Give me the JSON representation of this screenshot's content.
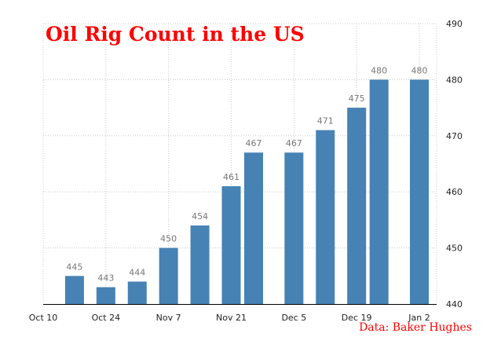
{
  "chart_data": {
    "type": "bar",
    "title": "Oil Rig Count in the US",
    "source": "Data: Baker Hughes",
    "x": [
      "2014-10-17",
      "2014-10-24",
      "2014-10-31",
      "2014-11-07",
      "2014-11-14",
      "2014-11-21",
      "2014-11-26",
      "2014-12-05",
      "2014-12-12",
      "2014-12-19",
      "2014-12-24",
      "2015-01-02"
    ],
    "values": [
      445,
      443,
      444,
      450,
      454,
      461,
      467,
      467,
      471,
      475,
      480,
      480
    ],
    "data_labels": [
      "445",
      "443",
      "444",
      "450",
      "454",
      "461",
      "467",
      "467",
      "471",
      "475",
      "480",
      "480"
    ],
    "x_ticks": [
      {
        "date": "2014-10-10",
        "label": "Oct 10"
      },
      {
        "date": "2014-10-24",
        "label": "Oct 24"
      },
      {
        "date": "2014-11-07",
        "label": "Nov 7"
      },
      {
        "date": "2014-11-21",
        "label": "Nov 21"
      },
      {
        "date": "2014-12-05",
        "label": "Dec 5"
      },
      {
        "date": "2014-12-19",
        "label": "Dec 19"
      },
      {
        "date": "2015-01-02",
        "label": "Jan 2"
      }
    ],
    "y_ticks": [
      "440",
      "450",
      "460",
      "470",
      "480",
      "490"
    ],
    "ylim": [
      440,
      490
    ],
    "y_axis_position": "right",
    "grid": true,
    "bar_color": "#4682b4"
  }
}
